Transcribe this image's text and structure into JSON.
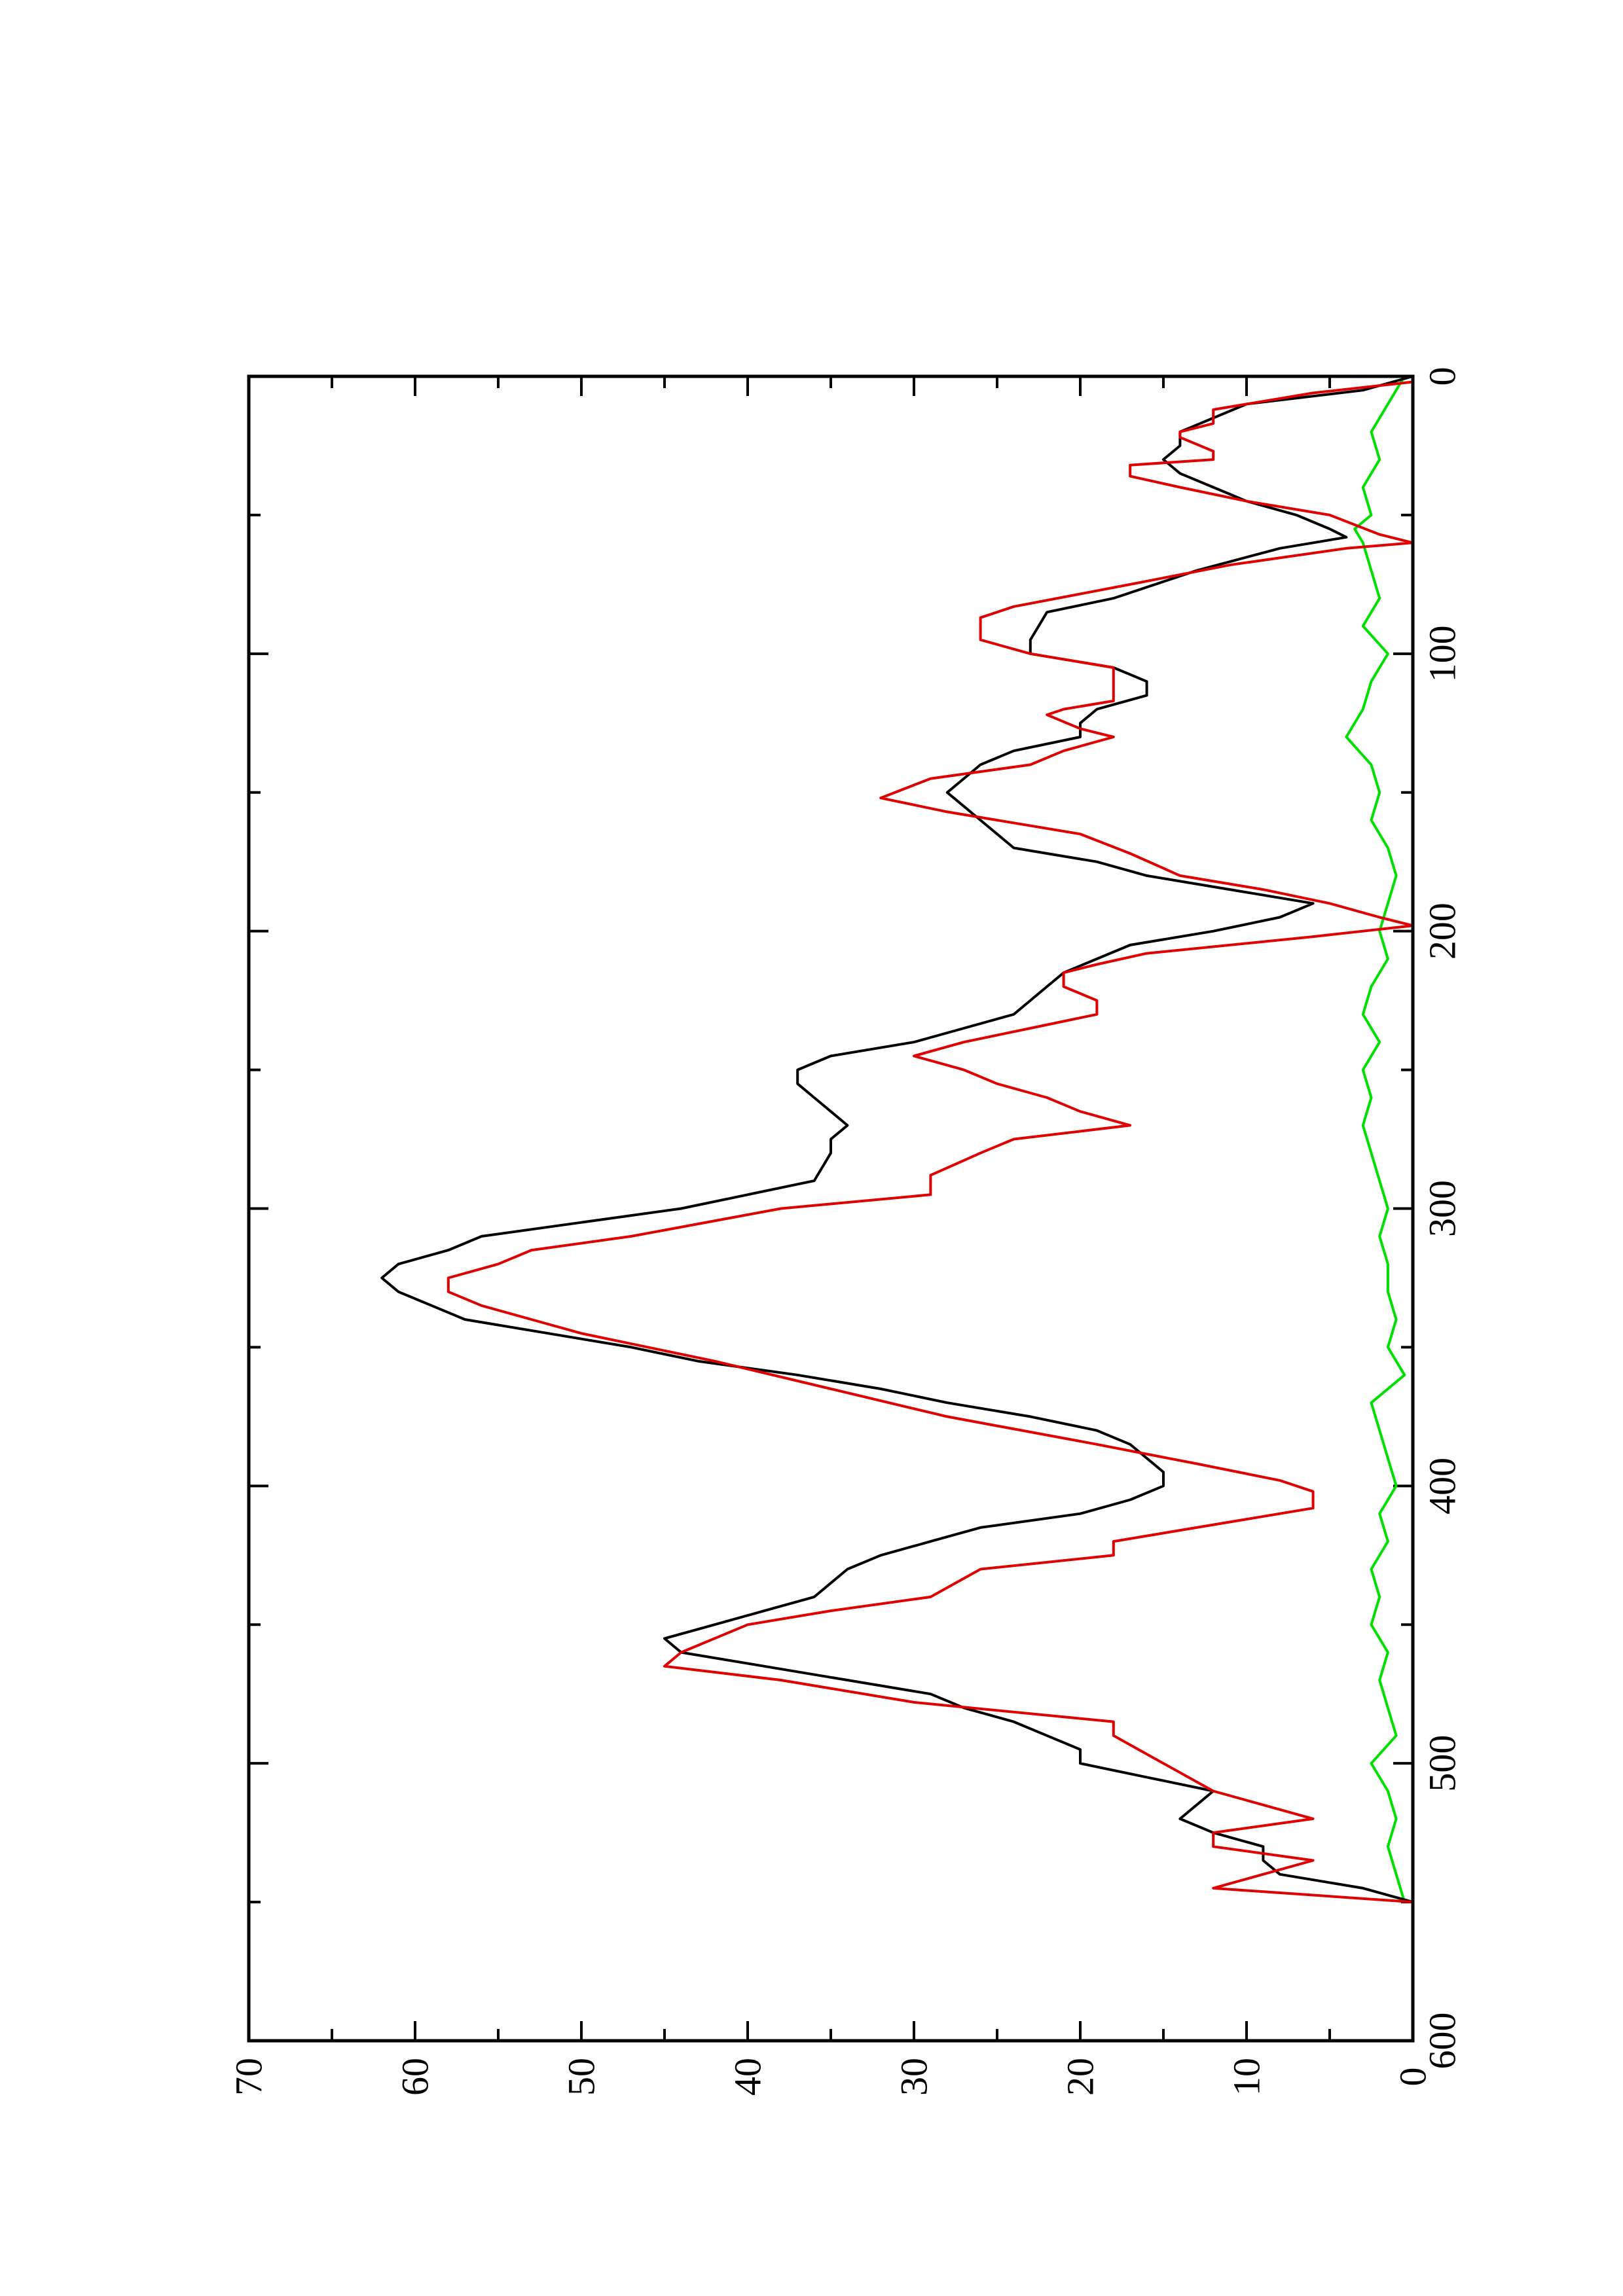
{
  "chart_data": {
    "type": "line",
    "title": "",
    "xlabel": "",
    "ylabel": "",
    "xlim": [
      0,
      600
    ],
    "ylim": [
      0,
      70
    ],
    "orientation": "rotated-90-ccw",
    "grid": false,
    "x_tick_labels": [
      "0",
      "100",
      "200",
      "300",
      "400",
      "500",
      "600"
    ],
    "y_tick_labels": [
      "0",
      "10",
      "20",
      "30",
      "40",
      "50",
      "60",
      "70"
    ],
    "series": [
      {
        "color": "#000000",
        "x": [
          0,
          5,
          10,
          15,
          20,
          25,
          30,
          35,
          40,
          45,
          50,
          55,
          58,
          62,
          70,
          80,
          85,
          95,
          100,
          105,
          110,
          115,
          120,
          125,
          130,
          135,
          140,
          145,
          150,
          155,
          160,
          170,
          175,
          180,
          185,
          190,
          195,
          200,
          205,
          210,
          215,
          220,
          225,
          230,
          235,
          240,
          245,
          250,
          255,
          260,
          265,
          270,
          275,
          280,
          290,
          295,
          300,
          305,
          310,
          315,
          320,
          325,
          330,
          335,
          340,
          345,
          350,
          355,
          360,
          365,
          370,
          375,
          380,
          385,
          390,
          395,
          400,
          405,
          410,
          415,
          420,
          425,
          430,
          435,
          440,
          445,
          450,
          455,
          460,
          465,
          470,
          475,
          480,
          485,
          490,
          495,
          500,
          505,
          510,
          515,
          520,
          525,
          530,
          535,
          540,
          545,
          550
        ],
        "values": [
          0,
          3,
          10,
          12,
          14,
          14,
          15,
          14,
          12,
          10,
          7,
          5,
          4,
          8,
          13,
          18,
          22,
          23,
          23,
          18,
          16,
          16,
          19,
          20,
          20,
          24,
          26,
          27,
          28,
          27,
          26,
          24,
          19,
          16,
          11,
          6,
          8,
          12,
          17,
          19,
          21,
          22,
          23,
          24,
          27,
          30,
          35,
          37,
          37,
          36,
          35,
          34,
          35,
          35,
          36,
          40,
          44,
          50,
          56,
          58,
          61,
          62,
          61,
          59,
          57,
          52,
          47,
          43,
          37,
          32,
          28,
          23,
          19,
          17,
          16,
          15,
          15,
          17,
          20,
          26,
          29,
          32,
          34,
          35,
          36,
          39,
          42,
          45,
          44,
          39,
          34,
          29,
          27,
          24,
          22,
          20,
          20,
          16,
          12,
          13,
          14,
          12,
          9,
          9,
          8,
          3,
          0
        ]
      },
      {
        "color": "#e00000",
        "x": [
          0,
          2,
          6,
          12,
          17,
          20,
          22,
          27,
          30,
          32,
          36,
          40,
          45,
          50,
          57,
          60,
          62,
          68,
          75,
          83,
          87,
          95,
          100,
          105,
          112,
          117,
          120,
          122,
          127,
          130,
          135,
          140,
          145,
          152,
          157,
          165,
          172,
          180,
          185,
          190,
          195,
          198,
          202,
          208,
          212,
          215,
          220,
          225,
          230,
          235,
          240,
          245,
          250,
          255,
          260,
          265,
          270,
          275,
          280,
          288,
          295,
          300,
          310,
          315,
          320,
          325,
          330,
          335,
          340,
          345,
          355,
          365,
          375,
          385,
          392,
          398,
          402,
          408,
          415,
          420,
          425,
          430,
          440,
          445,
          450,
          460,
          465,
          470,
          478,
          485,
          490,
          500,
          510,
          515,
          520,
          525,
          530,
          535,
          540,
          545,
          550
        ],
        "values": [
          0,
          0,
          6,
          12,
          12,
          14,
          14,
          12,
          12,
          17,
          17,
          14,
          10,
          5,
          2,
          0,
          4,
          11,
          17,
          24,
          26,
          26,
          23,
          18,
          18,
          18,
          21,
          22,
          20,
          18,
          21,
          23,
          29,
          32,
          28,
          20,
          17,
          14,
          9,
          5,
          2,
          0,
          6,
          16,
          19,
          21,
          21,
          19,
          19,
          23,
          27,
          30,
          27,
          25,
          22,
          20,
          17,
          24,
          26,
          29,
          29,
          38,
          47,
          53,
          55,
          58,
          58,
          56,
          53,
          50,
          42,
          35,
          28,
          19,
          13,
          8,
          6,
          6,
          13,
          18,
          18,
          26,
          29,
          35,
          40,
          44,
          45,
          38,
          30,
          18,
          18,
          15,
          12,
          9,
          6,
          12,
          12,
          6,
          9,
          12,
          0
        ]
      },
      {
        "color": "#00e000",
        "x": [
          0,
          10,
          20,
          30,
          40,
          50,
          55,
          60,
          70,
          80,
          90,
          100,
          110,
          120,
          130,
          140,
          150,
          160,
          170,
          180,
          190,
          200,
          210,
          220,
          230,
          240,
          250,
          260,
          270,
          280,
          290,
          300,
          310,
          320,
          330,
          340,
          350,
          360,
          370,
          380,
          390,
          400,
          410,
          420,
          430,
          440,
          450,
          460,
          470,
          480,
          490,
          500,
          510,
          520,
          530,
          540,
          550
        ],
        "values": [
          0.5,
          1.5,
          2.5,
          2.0,
          3.0,
          2.5,
          3.5,
          3.0,
          2.5,
          2.0,
          3.0,
          1.5,
          2.5,
          3.0,
          4.0,
          2.5,
          2.0,
          2.5,
          1.5,
          1.0,
          1.5,
          2.0,
          1.5,
          2.5,
          3.0,
          2.0,
          3.0,
          2.5,
          3.0,
          2.5,
          2.0,
          1.5,
          2.0,
          1.5,
          1.5,
          1.0,
          1.5,
          0.5,
          2.5,
          2.0,
          1.5,
          1.0,
          2.0,
          1.5,
          2.5,
          2.0,
          2.5,
          1.5,
          2.0,
          1.5,
          1.0,
          2.5,
          1.5,
          1.0,
          1.5,
          1.0,
          0.5
        ]
      }
    ]
  }
}
